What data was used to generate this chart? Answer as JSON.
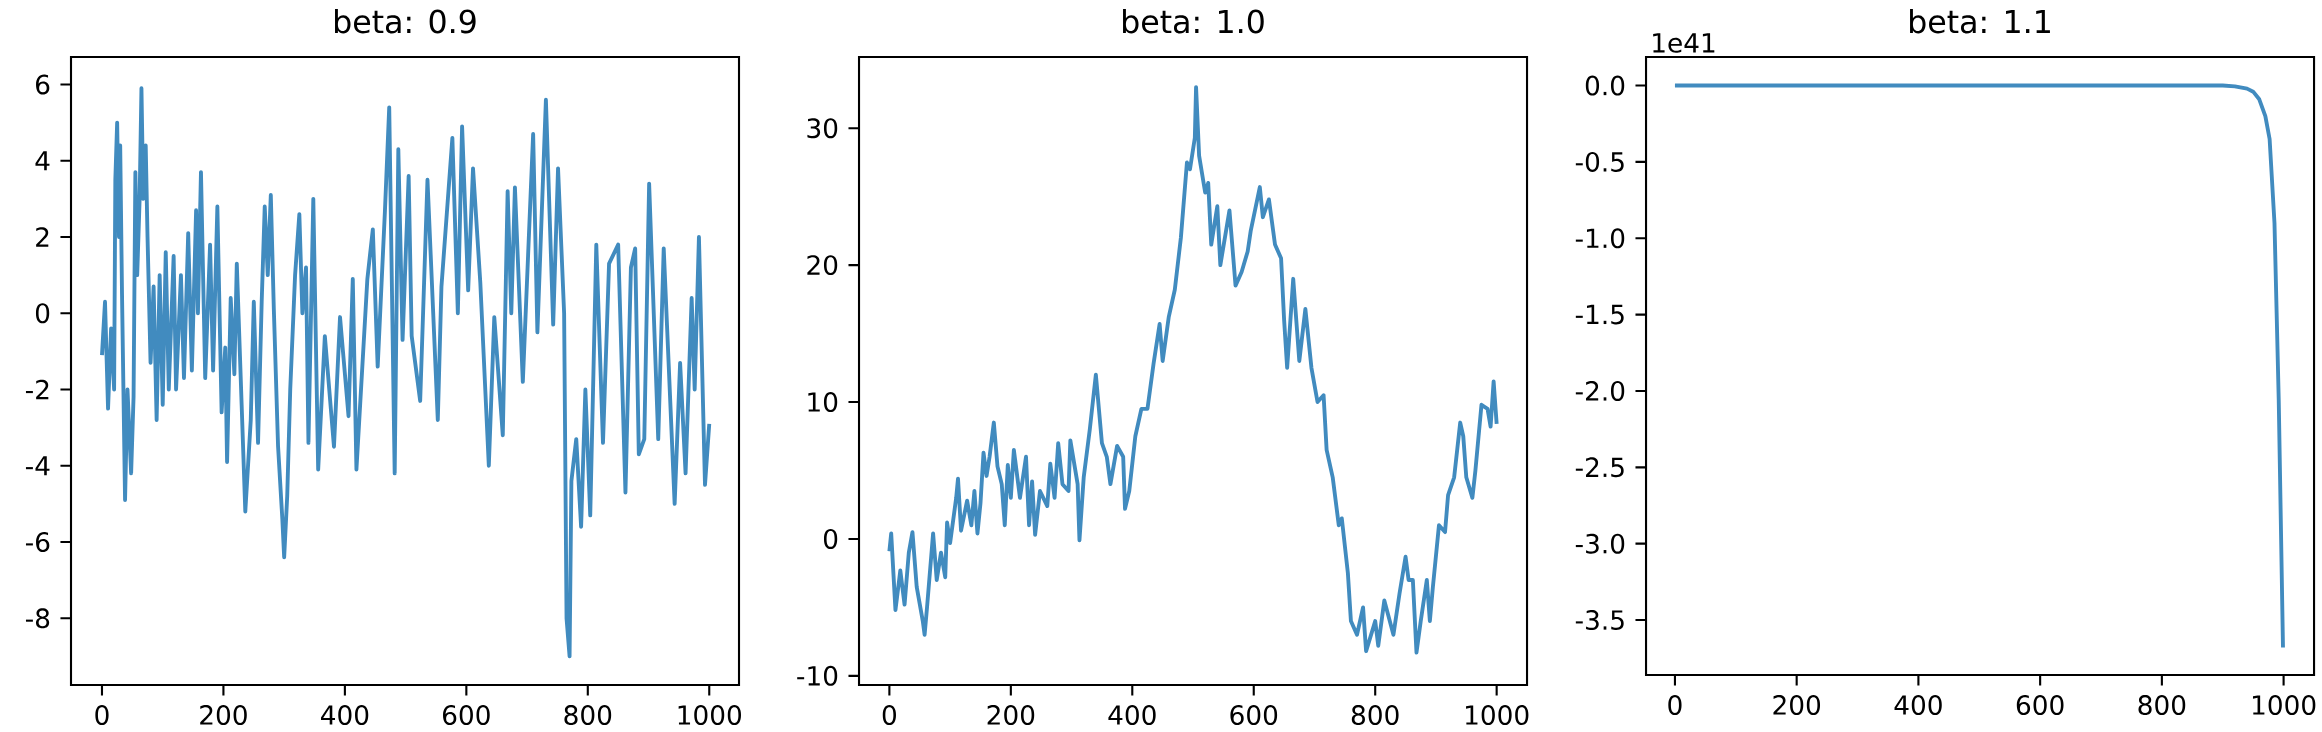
{
  "chart_data": [
    {
      "type": "line",
      "title": "beta: 0.9",
      "color": "#418bbf",
      "xlim": [
        -51,
        1049
      ],
      "ylim": [
        -9.75,
        6.72
      ],
      "xticks": [
        0,
        200,
        400,
        600,
        800,
        1000
      ],
      "yticks": [
        -8,
        -6,
        -4,
        -2,
        0,
        2,
        4,
        6
      ],
      "x": [
        0,
        5,
        10,
        15,
        20,
        22,
        25,
        28,
        30,
        33,
        38,
        42,
        48,
        52,
        55,
        58,
        62,
        65,
        68,
        72,
        75,
        80,
        85,
        90,
        95,
        100,
        105,
        110,
        118,
        122,
        130,
        135,
        142,
        148,
        155,
        158,
        163,
        170,
        178,
        183,
        190,
        197,
        203,
        206,
        212,
        218,
        222,
        230,
        236,
        245,
        250,
        257,
        263,
        268,
        273,
        278,
        283,
        290,
        297,
        300,
        305,
        310,
        318,
        325,
        330,
        336,
        340,
        348,
        356,
        367,
        382,
        392,
        406,
        413,
        419,
        437,
        446,
        454,
        466,
        473,
        482,
        488,
        495,
        505,
        510,
        524,
        536,
        553,
        559,
        577,
        586,
        593,
        603,
        611,
        623,
        637,
        646,
        660,
        668,
        674,
        680,
        693,
        710,
        717,
        731,
        743,
        751,
        761,
        765,
        770,
        773,
        781,
        789,
        796,
        804,
        814,
        825,
        835,
        850,
        862,
        871,
        878,
        884,
        893,
        901,
        916,
        925,
        943,
        952,
        961,
        971,
        976,
        983,
        993,
        1000
      ],
      "values": [
        -1.1,
        0.3,
        -2.5,
        -0.4,
        -2.0,
        3.5,
        5.0,
        2.0,
        4.4,
        0.5,
        -4.9,
        -2.0,
        -4.2,
        -2.2,
        3.7,
        1.0,
        3.0,
        5.9,
        3.0,
        4.4,
        2.0,
        -1.3,
        0.7,
        -2.8,
        1.0,
        -2.4,
        1.6,
        -2.0,
        1.5,
        -2.0,
        1.0,
        -1.7,
        2.1,
        -1.5,
        2.7,
        0.0,
        3.7,
        -1.7,
        1.8,
        -1.5,
        2.8,
        -2.6,
        -0.9,
        -3.9,
        0.4,
        -1.6,
        1.3,
        -2.4,
        -5.2,
        -2.8,
        0.3,
        -3.4,
        0.3,
        2.8,
        1.0,
        3.1,
        0.1,
        -3.5,
        -5.4,
        -6.4,
        -4.8,
        -2.0,
        1.0,
        2.6,
        0.0,
        1.2,
        -3.4,
        3.0,
        -4.1,
        -0.6,
        -3.5,
        -0.1,
        -2.7,
        0.9,
        -4.1,
        0.9,
        2.2,
        -1.4,
        2.7,
        5.4,
        -4.2,
        4.3,
        -0.7,
        3.6,
        -0.6,
        -2.3,
        3.5,
        -2.8,
        0.7,
        4.6,
        0.0,
        4.9,
        0.6,
        3.8,
        0.8,
        -4.0,
        -0.1,
        -3.2,
        3.2,
        0.0,
        3.3,
        -1.8,
        4.7,
        -0.5,
        5.6,
        -0.3,
        3.8,
        0.0,
        -8.0,
        -9.0,
        -4.4,
        -3.3,
        -5.6,
        -2.0,
        -5.3,
        1.8,
        -3.4,
        1.3,
        1.8,
        -4.7,
        1.2,
        1.7,
        -3.7,
        -3.3,
        3.4,
        -3.3,
        1.7,
        -5.0,
        -1.3,
        -4.2,
        0.4,
        -2.0,
        2.0,
        -4.5,
        -2.9
      ]
    },
    {
      "type": "line",
      "title": "beta: 1.0",
      "color": "#418bbf",
      "xlim": [
        -50,
        1050
      ],
      "ylim": [
        -10.67,
        35.2
      ],
      "xticks": [
        0,
        200,
        400,
        600,
        800,
        1000
      ],
      "yticks": [
        -10,
        0,
        10,
        20,
        30
      ],
      "x": [
        0,
        3,
        10,
        18,
        25,
        32,
        38,
        45,
        55,
        58,
        62,
        72,
        78,
        85,
        92,
        95,
        100,
        110,
        113,
        118,
        128,
        135,
        140,
        145,
        150,
        155,
        160,
        165,
        172,
        178,
        185,
        190,
        195,
        200,
        205,
        215,
        225,
        230,
        235,
        240,
        248,
        260,
        265,
        272,
        278,
        285,
        295,
        298,
        310,
        313,
        320,
        330,
        340,
        350,
        358,
        364,
        375,
        385,
        388,
        395,
        405,
        415,
        425,
        435,
        445,
        450,
        460,
        470,
        480,
        490,
        495,
        503,
        505,
        510,
        520,
        525,
        530,
        540,
        545,
        560,
        570,
        580,
        590,
        595,
        610,
        615,
        625,
        635,
        645,
        650,
        655,
        665,
        675,
        685,
        695,
        705,
        715,
        720,
        730,
        740,
        745,
        755,
        760,
        770,
        780,
        785,
        800,
        805,
        815,
        830,
        840,
        850,
        855,
        862,
        868,
        875,
        885,
        890,
        895,
        905,
        915,
        920,
        930,
        940,
        945,
        950,
        960,
        965,
        975,
        985,
        990,
        995,
        1000
      ],
      "values": [
        -0.9,
        0.4,
        -5.2,
        -2.3,
        -4.8,
        -1.0,
        0.5,
        -3.5,
        -6.0,
        -7.0,
        -5.0,
        0.4,
        -3.0,
        -1.0,
        -2.8,
        1.2,
        -0.3,
        3.0,
        4.4,
        0.6,
        2.8,
        1.0,
        3.5,
        0.4,
        2.6,
        6.3,
        4.6,
        6.0,
        8.5,
        5.3,
        4.0,
        1.0,
        5.4,
        3.0,
        6.5,
        3.0,
        6.0,
        1.0,
        4.2,
        0.3,
        3.5,
        2.4,
        5.5,
        3.0,
        7.0,
        4.0,
        3.5,
        7.2,
        4.0,
        -0.1,
        4.5,
        8.0,
        12.0,
        7.0,
        6.0,
        4.0,
        6.8,
        6.0,
        2.2,
        3.5,
        7.5,
        9.5,
        9.5,
        12.8,
        15.7,
        13.0,
        16.2,
        18.2,
        22.0,
        27.5,
        27.0,
        29.3,
        33.0,
        28.0,
        25.3,
        26.0,
        21.5,
        24.3,
        20.0,
        24.0,
        18.5,
        19.5,
        21.0,
        22.5,
        25.7,
        23.5,
        24.8,
        21.5,
        20.5,
        16.0,
        12.5,
        19.0,
        13.0,
        16.8,
        12.5,
        10.0,
        10.5,
        6.5,
        4.5,
        1.0,
        1.5,
        -2.5,
        -6.0,
        -7.0,
        -5.0,
        -8.2,
        -6.0,
        -7.8,
        -4.5,
        -7.0,
        -4.0,
        -1.3,
        -3.0,
        -3.0,
        -8.3,
        -6.0,
        -3.0,
        -6.0,
        -3.5,
        1.0,
        0.5,
        3.2,
        4.5,
        8.5,
        7.5,
        4.5,
        3.0,
        5.0,
        9.8,
        9.5,
        8.2,
        11.5,
        8.4
      ]
    },
    {
      "type": "line",
      "title": "beta: 1.1",
      "color": "#418bbf",
      "xlim": [
        -47.5,
        1050
      ],
      "ylim": [
        -3.86,
        0.187
      ],
      "xticks": [
        0,
        200,
        400,
        600,
        800,
        1000
      ],
      "yticks": [
        {
          "value": -3.5,
          "label": "-3.5"
        },
        {
          "value": -3.0,
          "label": "-3.0"
        },
        {
          "value": -2.5,
          "label": "-2.5"
        },
        {
          "value": -2.0,
          "label": "-2.0"
        },
        {
          "value": -1.5,
          "label": "-1.5"
        },
        {
          "value": -1.0,
          "label": "-1.0"
        },
        {
          "value": -0.5,
          "label": "-0.5"
        },
        {
          "value": 0,
          "label": "0.0"
        }
      ],
      "annotations": [
        "1e41"
      ],
      "x": [
        0,
        100,
        200,
        300,
        400,
        500,
        600,
        700,
        800,
        900,
        920,
        940,
        950,
        960,
        970,
        977,
        985,
        992,
        999
      ],
      "values": [
        0,
        0,
        0,
        0,
        0,
        0,
        0,
        0,
        0,
        0,
        -0.005,
        -0.02,
        -0.04,
        -0.09,
        -0.2,
        -0.35,
        -0.9,
        -2.06,
        -3.68
      ]
    }
  ]
}
